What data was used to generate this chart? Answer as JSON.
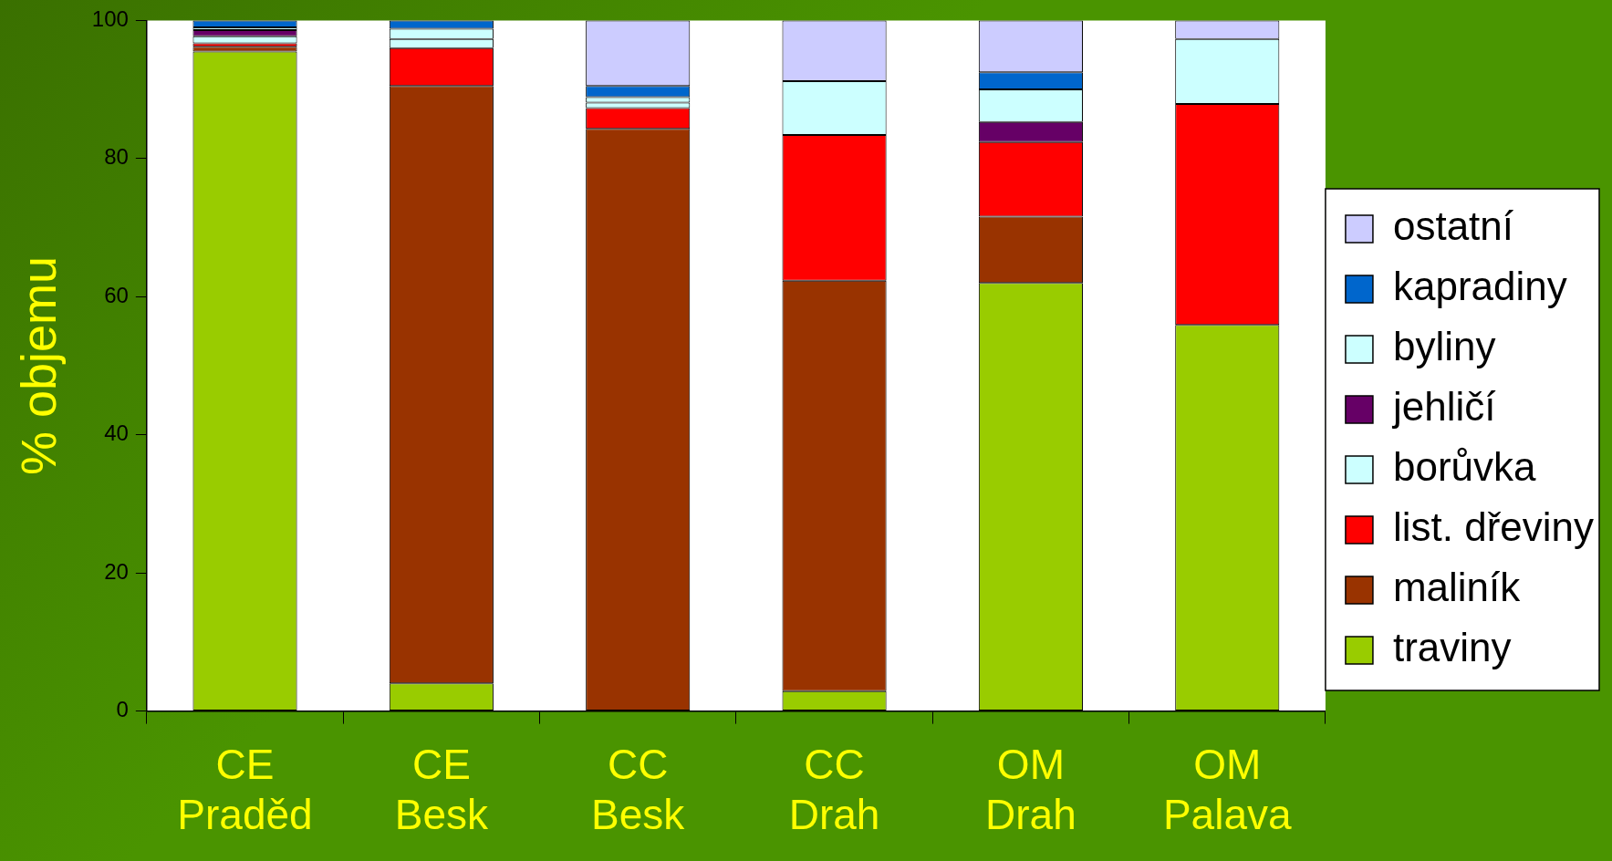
{
  "chart_data": {
    "type": "bar",
    "stacked": true,
    "ylabel": "% objemu",
    "categories": [
      "CE\nPraděd",
      "CE\nBesk",
      "CC\nBesk",
      "CC\nDrah",
      "OM\nDrah",
      "OM\nPalava"
    ],
    "ylim": [
      0,
      100
    ],
    "yticks": [
      0,
      20,
      40,
      60,
      80,
      100
    ],
    "grid": false,
    "legend": "right",
    "series": [
      {
        "name": "traviny",
        "color": "#99cc00",
        "values": [
          95.5,
          4,
          null,
          2.9,
          62.0,
          55.9
        ]
      },
      {
        "name": "maliník",
        "color": "#993300",
        "values": [
          0.7,
          86.5,
          84.3,
          59.4,
          9.6,
          null
        ]
      },
      {
        "name": "list. dřeviny",
        "color": "#ff0000",
        "values": [
          0.5,
          5.5,
          3.0,
          21.1,
          10.8,
          32.0
        ]
      },
      {
        "name": "borůvka",
        "color": "#ccffff",
        "values": [
          1.0,
          1.3,
          0.8,
          null,
          null,
          null
        ]
      },
      {
        "name": "jehličí",
        "color": "#660066",
        "values": [
          0.9,
          null,
          null,
          null,
          2.9,
          null
        ]
      },
      {
        "name": "byliny",
        "color": "#ccffff",
        "values": [
          0.4,
          1.5,
          0.8,
          7.8,
          4.7,
          9.4
        ]
      },
      {
        "name": "kapradiny",
        "color": "#0066cc",
        "values": [
          1.0,
          1.2,
          1.6,
          null,
          2.5,
          null
        ]
      },
      {
        "name": "ostatní",
        "color": "#ccccff",
        "values": [
          null,
          null,
          9.5,
          8.8,
          7.5,
          2.7
        ]
      }
    ]
  }
}
